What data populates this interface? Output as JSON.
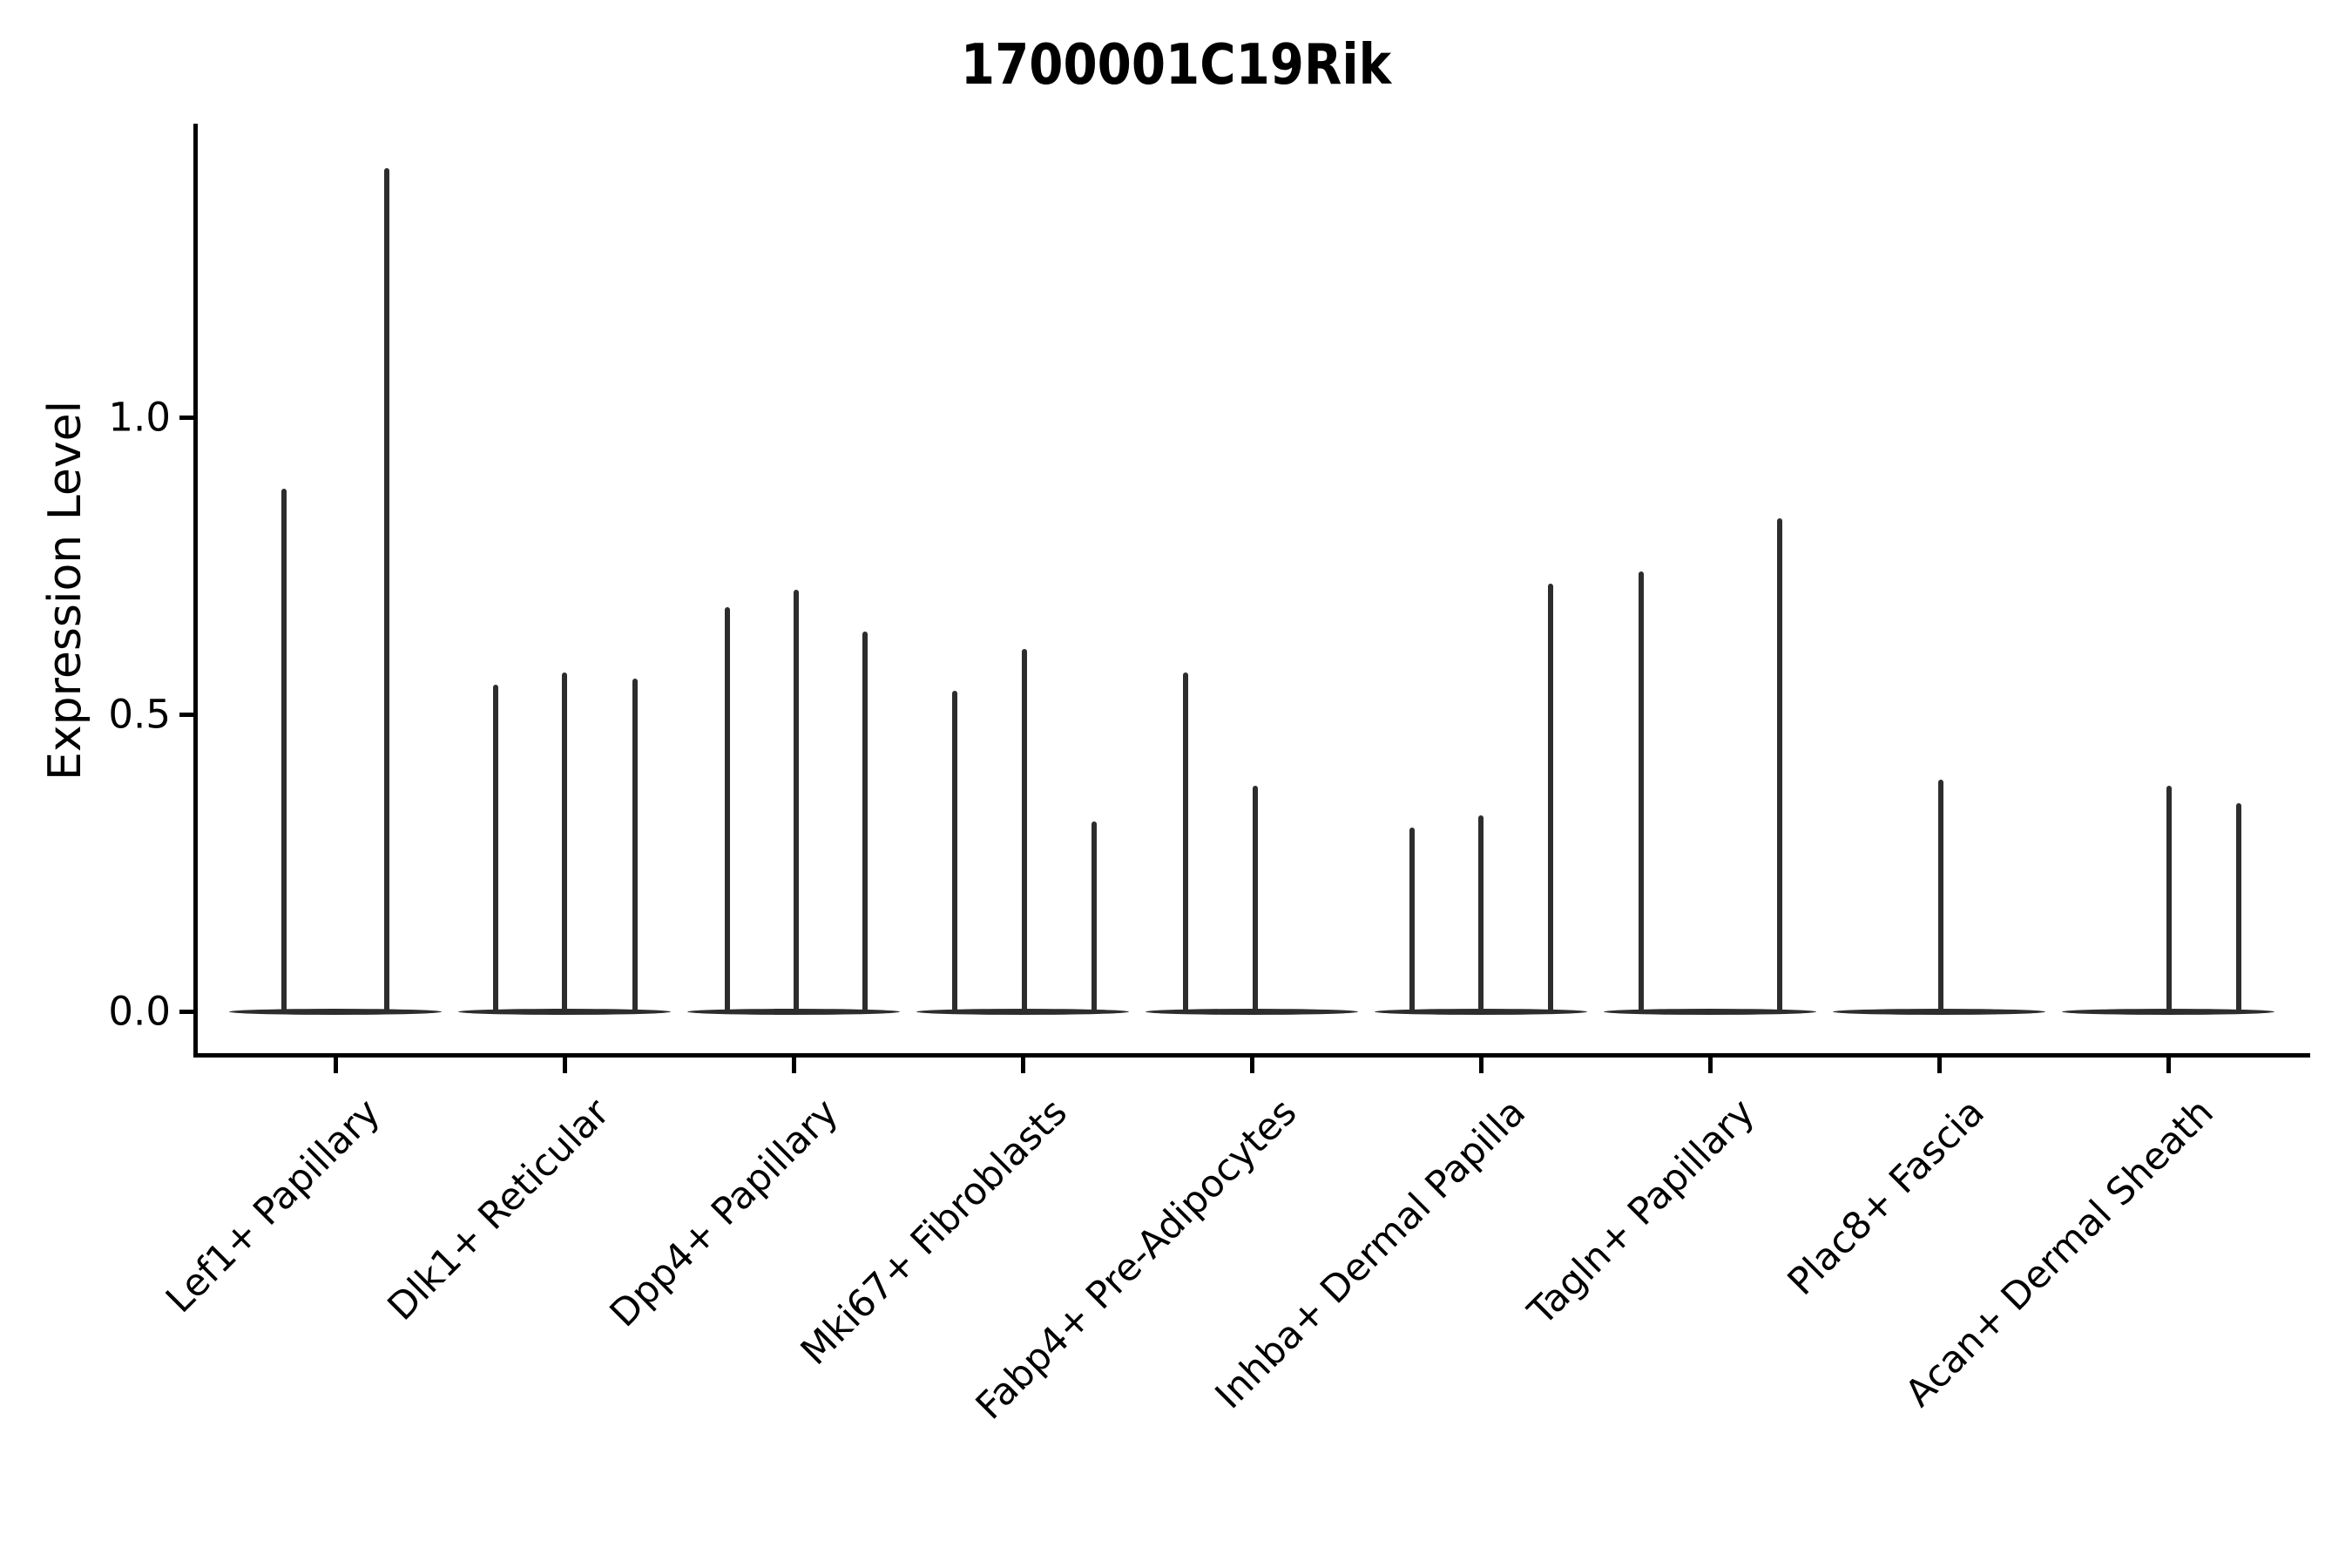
{
  "chart_data": {
    "type": "violin",
    "title": "1700001C19Rik",
    "ylabel": "Expression Level",
    "xlabel": "",
    "grid": false,
    "legend": "none",
    "colors": {
      "violin": "#2d2d2d",
      "axis": "#000000",
      "text": "#000000",
      "background": "#ffffff"
    },
    "y_axis": {
      "ticks": [
        0.0,
        0.5,
        1.0
      ],
      "tick_labels": [
        "0.0",
        "0.5",
        "1.0"
      ],
      "ylim": [
        -0.07,
        1.49
      ]
    },
    "x_axis_note": "categorical, labels rotated 45 degrees",
    "categories": [
      {
        "label": "Lef1+ Papillary",
        "spikes": [
          {
            "x_offset": -59,
            "value": 0.88
          },
          {
            "x_offset": 59,
            "value": 1.42
          }
        ]
      },
      {
        "label": "Dlk1+ Reticular",
        "spikes": [
          {
            "x_offset": -79,
            "value": 0.55
          },
          {
            "x_offset": 0,
            "value": 0.57
          },
          {
            "x_offset": 81,
            "value": 0.56
          }
        ]
      },
      {
        "label": "Dpp4+ Papillary",
        "spikes": [
          {
            "x_offset": -76,
            "value": 0.68
          },
          {
            "x_offset": 3,
            "value": 0.71
          },
          {
            "x_offset": 82,
            "value": 0.64
          }
        ]
      },
      {
        "label": "Mki67+ Fibroblasts",
        "spikes": [
          {
            "x_offset": -78,
            "value": 0.54
          },
          {
            "x_offset": 2,
            "value": 0.61
          },
          {
            "x_offset": 82,
            "value": 0.32
          }
        ]
      },
      {
        "label": "Fabp4+ Pre-Adipocytes",
        "spikes": [
          {
            "x_offset": -76,
            "value": 0.57
          },
          {
            "x_offset": 4,
            "value": 0.38
          }
        ]
      },
      {
        "label": "Inhba+ Dermal Papilla",
        "spikes": [
          {
            "x_offset": -79,
            "value": 0.31
          },
          {
            "x_offset": 0,
            "value": 0.33
          },
          {
            "x_offset": 80,
            "value": 0.72
          }
        ]
      },
      {
        "label": "Tagln+ Papillary",
        "spikes": [
          {
            "x_offset": -79,
            "value": 0.74
          },
          {
            "x_offset": 80,
            "value": 0.83
          }
        ]
      },
      {
        "label": "Plac8+ Fascia",
        "spikes": [
          {
            "x_offset": 2,
            "value": 0.39
          }
        ]
      },
      {
        "label": "Acan+ Dermal Sheath",
        "spikes": [
          {
            "x_offset": 1,
            "value": 0.38
          },
          {
            "x_offset": 81,
            "value": 0.35
          }
        ]
      }
    ]
  }
}
